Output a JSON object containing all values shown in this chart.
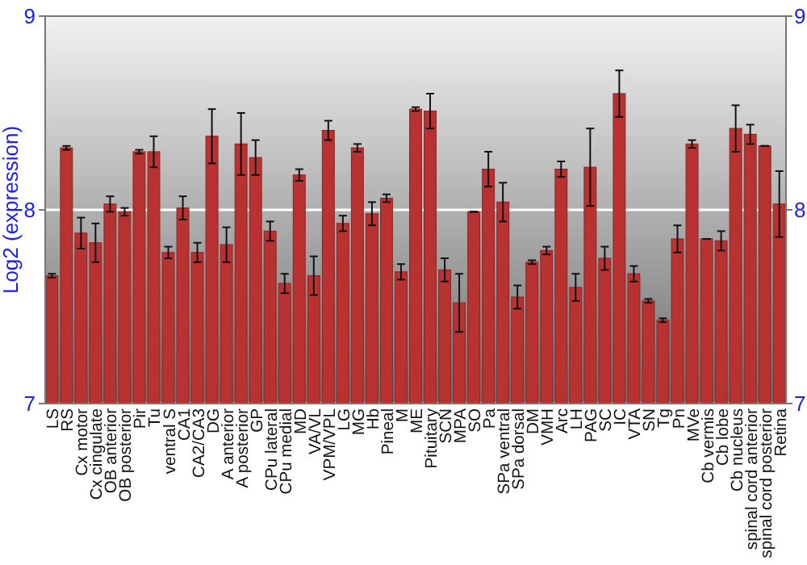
{
  "chart_data": {
    "type": "bar",
    "ylabel": "Log2 (expression)",
    "categories": [
      "LS",
      "RS",
      "Cx motor",
      "Cx cingulate",
      "OB anterior",
      "OB posterior",
      "Pir",
      "Tu",
      "ventral S",
      "CA1",
      "CA2/CA3",
      "DG",
      "A anterior",
      "A posterior",
      "GP",
      "CPu lateral",
      "CPu medial",
      "MD",
      "VA/VL",
      "VPM/VPL",
      "LG",
      "MG",
      "Hb",
      "Pineal",
      "M",
      "ME",
      "Pituitary",
      "SCN",
      "MPA",
      "SO",
      "Pa",
      "SPa ventral",
      "SPa dorsal",
      "DM",
      "VMH",
      "Arc",
      "LH",
      "PAG",
      "SC",
      "IC",
      "VTA",
      "SN",
      "Tg",
      "Pn",
      "MVe",
      "Cb vermis",
      "Cb lobe",
      "Cb nucleus",
      "spinal cord anterior",
      "spinal cord posterior",
      "Retina"
    ],
    "values": [
      7.66,
      8.32,
      7.88,
      7.83,
      8.03,
      7.99,
      8.3,
      8.3,
      7.78,
      8.01,
      7.78,
      8.38,
      7.82,
      8.34,
      8.27,
      7.89,
      7.62,
      8.18,
      7.66,
      8.41,
      7.93,
      8.32,
      7.98,
      8.06,
      7.68,
      8.52,
      8.51,
      7.69,
      7.52,
      7.99,
      8.21,
      8.04,
      7.55,
      7.73,
      7.79,
      8.21,
      7.6,
      8.22,
      7.75,
      8.6,
      7.67,
      7.53,
      7.43,
      7.85,
      8.34,
      7.85,
      7.84,
      8.42,
      8.39,
      8.33,
      8.03
    ],
    "errors": [
      0.01,
      0.01,
      0.08,
      0.1,
      0.04,
      0.02,
      0.01,
      0.08,
      0.03,
      0.06,
      0.05,
      0.14,
      0.09,
      0.16,
      0.09,
      0.05,
      0.05,
      0.03,
      0.1,
      0.05,
      0.04,
      0.02,
      0.06,
      0.02,
      0.04,
      0.01,
      0.09,
      0.06,
      0.15,
      0.0,
      0.09,
      0.1,
      0.06,
      0.01,
      0.02,
      0.04,
      0.07,
      0.2,
      0.06,
      0.12,
      0.04,
      0.01,
      0.01,
      0.07,
      0.02,
      0.0,
      0.05,
      0.12,
      0.05,
      0.0,
      0.17
    ],
    "color": "#b83232",
    "ylim": [
      7,
      9
    ],
    "yticks": [
      7,
      8,
      9
    ],
    "y2lim": [
      7,
      9
    ],
    "y2ticks": [
      7,
      8,
      9
    ],
    "grid": "y"
  }
}
